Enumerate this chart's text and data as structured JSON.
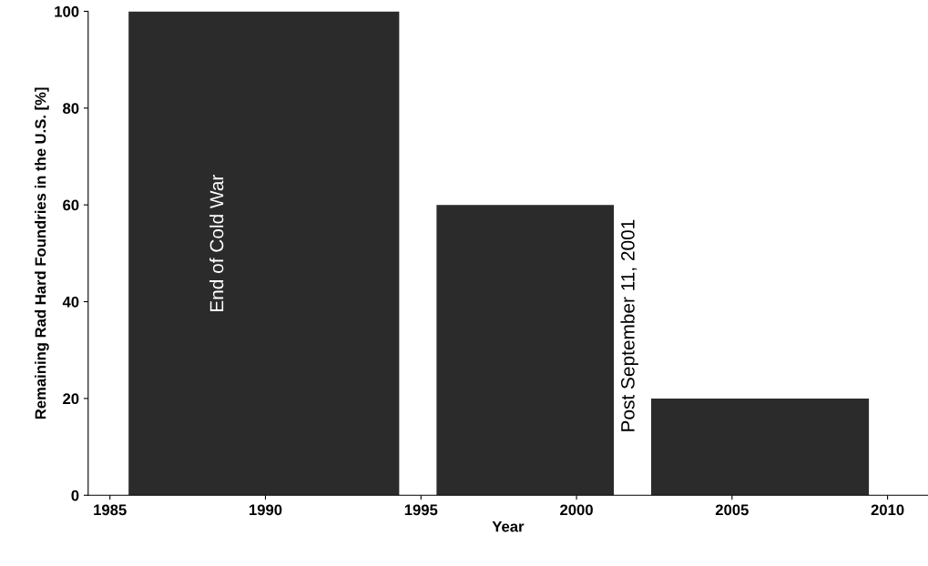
{
  "chart_data": {
    "type": "histogram",
    "xlabel": "Year",
    "ylabel": "Remaining Rad Hard Foundries in the U.S. [%]",
    "bins": [
      1985.6,
      1994.3,
      1995.5,
      2001.2,
      2002.4,
      2009.4
    ],
    "values": [
      100,
      null,
      60,
      null,
      20
    ],
    "color": "#2b2b2b",
    "xlim": [
      1984.3,
      2011.3
    ],
    "xticks": [
      1985,
      1990,
      1995,
      2000,
      2005,
      2010
    ],
    "ylim": [
      0,
      100
    ],
    "yticks": [
      0,
      20,
      40,
      60,
      80,
      100
    ],
    "grid": false,
    "annotations": [
      "End of Cold War",
      "Post September 11, 2001"
    ]
  }
}
